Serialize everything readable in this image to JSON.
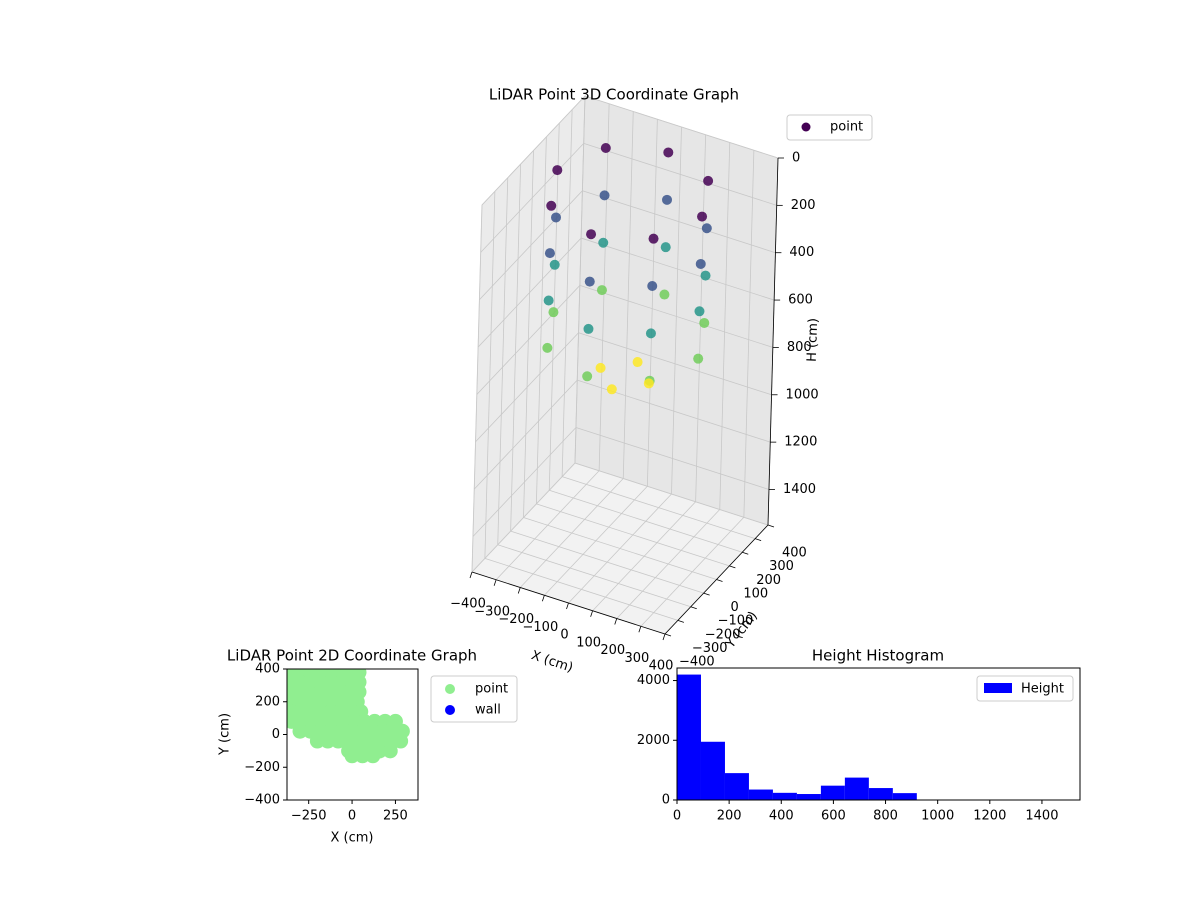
{
  "chart_data": [
    {
      "type": "scatter3d",
      "title": "LiDAR Point 3D Coordinate Graph",
      "xlabel": "X (cm)",
      "ylabel": "Y (cm)",
      "zlabel": "H (cm)",
      "xlim": [
        -400,
        400
      ],
      "ylim": [
        -400,
        400
      ],
      "zlim": [
        0,
        1550
      ],
      "zinverted": true,
      "cmap": "viridis",
      "grid": true,
      "xticks": [
        {
          "value": -400,
          "label": "−400"
        },
        {
          "value": -300,
          "label": "−300"
        },
        {
          "value": -200,
          "label": "−200"
        },
        {
          "value": -100,
          "label": "−100"
        },
        0,
        100,
        200,
        300,
        400
      ],
      "yticks": [
        {
          "value": -400,
          "label": "−400"
        },
        {
          "value": -300,
          "label": "−300"
        },
        {
          "value": -200,
          "label": "−200"
        },
        {
          "value": -100,
          "label": "−100"
        },
        0,
        100,
        200,
        300,
        400
      ],
      "zticks": [
        0,
        200,
        400,
        600,
        800,
        1000,
        1200,
        1400
      ],
      "legend": "outside-upper-right",
      "series": [
        {
          "name": "point",
          "x": [
            300,
            212,
            0,
            -212,
            -300,
            -212,
            0,
            212,
            300,
            212,
            0,
            -212,
            -300,
            -212,
            0,
            212,
            300,
            212,
            0,
            -212,
            -300,
            -212,
            0,
            212,
            300,
            212,
            0,
            -212,
            -300,
            -212,
            0,
            212,
            100,
            0,
            -100,
            0
          ],
          "y": [
            0,
            212,
            300,
            212,
            0,
            -212,
            -300,
            -212,
            0,
            212,
            300,
            212,
            0,
            -212,
            -300,
            -212,
            0,
            212,
            300,
            212,
            0,
            -212,
            -300,
            -212,
            0,
            212,
            300,
            212,
            0,
            -212,
            -300,
            -212,
            0,
            100,
            0,
            -100
          ],
          "z": [
            50,
            50,
            50,
            50,
            50,
            50,
            50,
            50,
            250,
            250,
            250,
            250,
            250,
            250,
            250,
            250,
            450,
            450,
            450,
            450,
            450,
            450,
            450,
            450,
            650,
            650,
            650,
            650,
            650,
            650,
            650,
            650,
            820,
            820,
            820,
            820
          ]
        }
      ]
    },
    {
      "type": "scatter",
      "title": "LiDAR Point 2D Coordinate Graph",
      "xlabel": "X (cm)",
      "ylabel": "Y (cm)",
      "xlim": [
        -375,
        380
      ],
      "ylim": [
        -400,
        400
      ],
      "xticks": [
        {
          "value": -250,
          "label": "−250"
        },
        0,
        250
      ],
      "yticks": [
        {
          "value": -400,
          "label": "−400"
        },
        {
          "value": -200,
          "label": "−200"
        },
        0,
        200,
        400
      ],
      "legend": "outside-upper-right",
      "series": [
        {
          "name": "point",
          "color": "#90ee90",
          "x": [
            -360,
            -300,
            -240,
            -180,
            -120,
            -60,
            0,
            40,
            -360,
            -300,
            -240,
            -180,
            -120,
            -60,
            0,
            40,
            -360,
            -300,
            -240,
            -180,
            -120,
            -60,
            0,
            40,
            -360,
            -300,
            -240,
            -180,
            -120,
            -60,
            0,
            30,
            -360,
            -300,
            -240,
            -180,
            -120,
            -60,
            0,
            50,
            -350,
            -290,
            -230,
            -170,
            -110,
            -50,
            10,
            70,
            130,
            190,
            250,
            -300,
            -240,
            -180,
            -120,
            -60,
            0,
            60,
            120,
            180,
            240,
            290,
            -200,
            -140,
            -80,
            -20,
            40,
            100,
            160,
            220,
            280,
            -20,
            40,
            100,
            160,
            220,
            0,
            60,
            120
          ],
          "y": [
            380,
            380,
            380,
            380,
            380,
            380,
            380,
            380,
            320,
            320,
            320,
            320,
            320,
            320,
            320,
            320,
            260,
            260,
            260,
            260,
            260,
            260,
            260,
            260,
            200,
            200,
            200,
            200,
            200,
            200,
            200,
            200,
            140,
            140,
            140,
            140,
            140,
            140,
            140,
            140,
            80,
            80,
            80,
            80,
            80,
            80,
            80,
            80,
            80,
            80,
            80,
            20,
            20,
            20,
            20,
            20,
            20,
            20,
            20,
            20,
            20,
            20,
            -40,
            -40,
            -40,
            -40,
            -40,
            -40,
            -40,
            -40,
            -40,
            -100,
            -100,
            -100,
            -100,
            -100,
            -130,
            -130,
            -130
          ]
        },
        {
          "name": "wall",
          "color": "#0000ff",
          "x": [],
          "y": []
        }
      ]
    },
    {
      "type": "histogram",
      "title": "Height Histogram",
      "bins": [
        0,
        92,
        184,
        276,
        368,
        460,
        552,
        644,
        736,
        828,
        920,
        1012,
        1104,
        1196,
        1288,
        1380,
        1472
      ],
      "xlim": [
        0,
        1546
      ],
      "ylim": [
        0,
        4420
      ],
      "xticks": [
        0,
        200,
        400,
        600,
        800,
        1000,
        1200,
        1400
      ],
      "yticks": [
        0,
        2000,
        4000
      ],
      "legend": "upper-right",
      "series": [
        {
          "name": "Height",
          "color": "#0000ff",
          "values": [
            4200,
            1950,
            900,
            350,
            240,
            200,
            480,
            750,
            400,
            230,
            10,
            5,
            3,
            2,
            1,
            1
          ]
        }
      ]
    }
  ]
}
